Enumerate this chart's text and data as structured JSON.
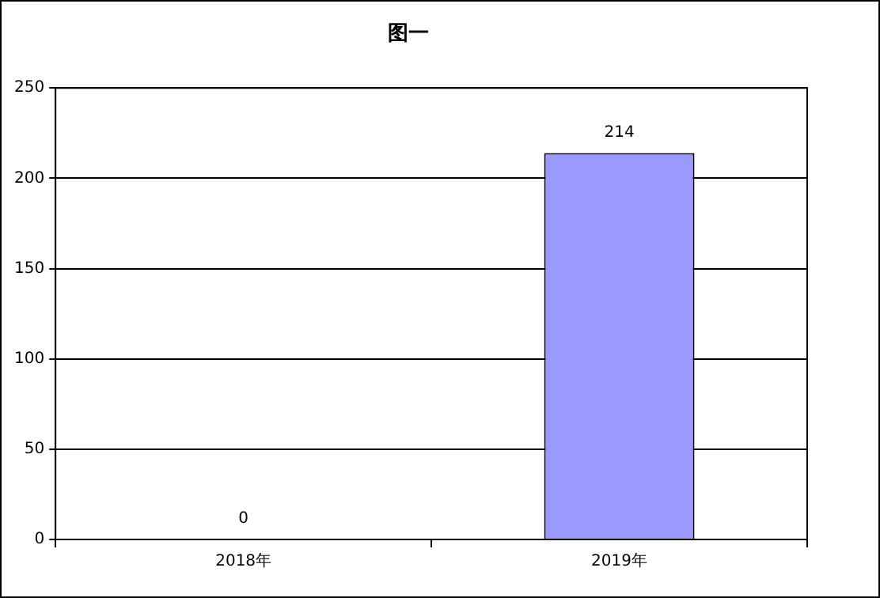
{
  "chart_data": {
    "type": "bar",
    "title": "图一",
    "categories": [
      "2018年",
      "2019年"
    ],
    "values": [
      0,
      214
    ],
    "color": "#9999ff",
    "ylim": [
      0,
      250
    ],
    "yticks": [
      0,
      50,
      100,
      150,
      200,
      250
    ],
    "grid": "y",
    "data_labels": true
  }
}
